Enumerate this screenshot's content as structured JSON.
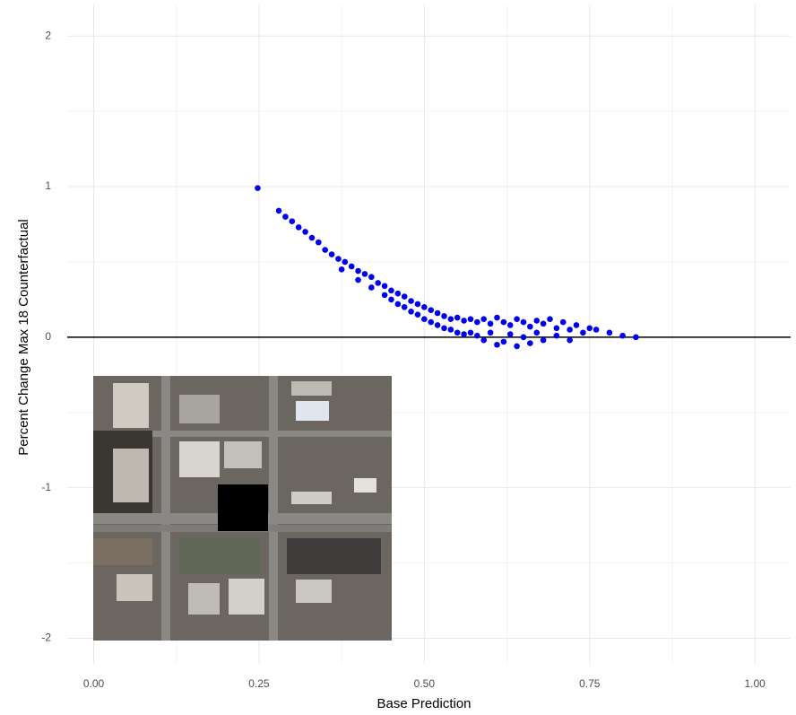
{
  "chart_data": {
    "type": "scatter",
    "x_label": "Base Prediction",
    "y_label": "Percent Change Max 18 Counterfactual",
    "xlim": [
      -0.04,
      1.054
    ],
    "ylim": [
      -2.17,
      2.21
    ],
    "xticks": [
      {
        "value": 0,
        "label": "0.00"
      },
      {
        "value": 0.25,
        "label": "0.25"
      },
      {
        "value": 0.5,
        "label": "0.50"
      },
      {
        "value": 0.75,
        "label": "0.75"
      },
      {
        "value": 1,
        "label": "1.00"
      }
    ],
    "yticks": [
      -2,
      -1,
      0,
      1,
      2
    ],
    "grid": true,
    "hline": 0,
    "hline_color": "#000000",
    "series": [
      {
        "color": "#0000ee",
        "x": [
          0.248,
          0.28,
          0.29,
          0.3,
          0.31,
          0.32,
          0.33,
          0.34,
          0.35,
          0.36,
          0.37,
          0.375,
          0.38,
          0.39,
          0.4,
          0.4,
          0.41,
          0.42,
          0.42,
          0.43,
          0.44,
          0.44,
          0.45,
          0.45,
          0.46,
          0.46,
          0.47,
          0.47,
          0.48,
          0.48,
          0.49,
          0.49,
          0.5,
          0.5,
          0.51,
          0.51,
          0.52,
          0.52,
          0.53,
          0.53,
          0.54,
          0.54,
          0.55,
          0.55,
          0.56,
          0.56,
          0.57,
          0.57,
          0.58,
          0.58,
          0.59,
          0.59,
          0.6,
          0.6,
          0.61,
          0.61,
          0.62,
          0.62,
          0.63,
          0.63,
          0.64,
          0.64,
          0.65,
          0.65,
          0.66,
          0.66,
          0.67,
          0.67,
          0.68,
          0.68,
          0.69,
          0.7,
          0.7,
          0.71,
          0.72,
          0.72,
          0.73,
          0.74,
          0.75,
          0.76,
          0.78,
          0.8,
          0.82
        ],
        "values": [
          0.99,
          0.84,
          0.8,
          0.77,
          0.73,
          0.7,
          0.66,
          0.63,
          0.58,
          0.55,
          0.52,
          0.45,
          0.5,
          0.47,
          0.44,
          0.38,
          0.42,
          0.4,
          0.33,
          0.36,
          0.34,
          0.28,
          0.31,
          0.25,
          0.29,
          0.22,
          0.27,
          0.2,
          0.24,
          0.17,
          0.22,
          0.15,
          0.2,
          0.12,
          0.18,
          0.1,
          0.16,
          0.08,
          0.14,
          0.06,
          0.12,
          0.05,
          0.13,
          0.03,
          0.11,
          0.02,
          0.12,
          0.03,
          0.1,
          0.01,
          0.12,
          -0.02,
          0.09,
          0.03,
          0.13,
          -0.05,
          0.1,
          -0.03,
          0.08,
          0.02,
          0.12,
          -0.06,
          0.1,
          0,
          0.07,
          -0.04,
          0.11,
          0.03,
          0.09,
          -0.02,
          0.12,
          0.06,
          0.01,
          0.1,
          0.05,
          -0.02,
          0.08,
          0.03,
          0.06,
          0.05,
          0.03,
          0.01,
          0
        ]
      }
    ]
  }
}
